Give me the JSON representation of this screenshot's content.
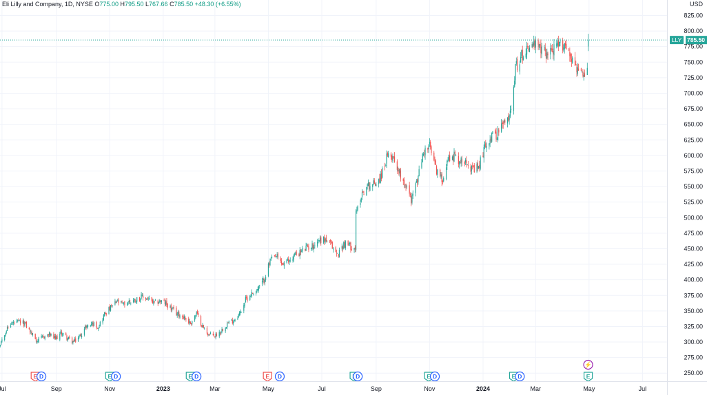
{
  "legend": {
    "name": "Eli Lilly and Company, 1D, NYSE",
    "open_label": "O",
    "open": "775.00",
    "high_label": "H",
    "high": "795.50",
    "low_label": "L",
    "low": "767.66",
    "close_label": "C",
    "close": "785.50",
    "change": "+48.30 (+6.55%)"
  },
  "price_axis": {
    "currency": "USD"
  },
  "last_price": {
    "ticker": "LLY",
    "value": "785.50",
    "color": "#26a69a"
  },
  "colors": {
    "up": "#26a69a",
    "down": "#ef5350",
    "grid": "#f0f3fa",
    "axis_text": "#131722",
    "dividend": "#2962ff"
  },
  "chart_data": {
    "type": "candlestick",
    "title": "Eli Lilly and Company, 1D, NYSE",
    "xlabel": "",
    "ylabel": "",
    "y_ticks": [
      250,
      275,
      300,
      325,
      350,
      375,
      400,
      425,
      450,
      475,
      500,
      525,
      550,
      575,
      600,
      625,
      650,
      675,
      700,
      725,
      750,
      775,
      800,
      825
    ],
    "ylim": [
      237,
      841
    ],
    "x_range": [
      "2022-06-13",
      "2024-07-29"
    ],
    "x_ticks": [
      {
        "date": "2022-07-01",
        "label": "Jul",
        "bold": false
      },
      {
        "date": "2022-09-01",
        "label": "Sep",
        "bold": false
      },
      {
        "date": "2022-11-01",
        "label": "Nov",
        "bold": false
      },
      {
        "date": "2023-01-01",
        "label": "2023",
        "bold": true
      },
      {
        "date": "2023-03-01",
        "label": "Mar",
        "bold": false
      },
      {
        "date": "2023-05-01",
        "label": "May",
        "bold": false
      },
      {
        "date": "2023-07-01",
        "label": "Jul",
        "bold": false
      },
      {
        "date": "2023-09-01",
        "label": "Sep",
        "bold": false
      },
      {
        "date": "2023-11-01",
        "label": "Nov",
        "bold": false
      },
      {
        "date": "2024-01-01",
        "label": "2024",
        "bold": true
      },
      {
        "date": "2024-03-01",
        "label": "Mar",
        "bold": false
      },
      {
        "date": "2024-05-01",
        "label": "May",
        "bold": false
      },
      {
        "date": "2024-07-01",
        "label": "Jul",
        "bold": false
      }
    ],
    "close_path": [
      [
        "2022-06-13",
        305
      ],
      [
        "2022-06-20",
        300
      ],
      [
        "2022-06-27",
        292
      ],
      [
        "2022-07-05",
        318
      ],
      [
        "2022-07-12",
        330
      ],
      [
        "2022-07-20",
        332
      ],
      [
        "2022-07-27",
        330
      ],
      [
        "2022-08-03",
        315
      ],
      [
        "2022-08-10",
        302
      ],
      [
        "2022-08-17",
        308
      ],
      [
        "2022-08-24",
        312
      ],
      [
        "2022-08-31",
        305
      ],
      [
        "2022-09-07",
        315
      ],
      [
        "2022-09-14",
        306
      ],
      [
        "2022-09-21",
        300
      ],
      [
        "2022-09-28",
        310
      ],
      [
        "2022-10-05",
        325
      ],
      [
        "2022-10-12",
        330
      ],
      [
        "2022-10-19",
        325
      ],
      [
        "2022-10-26",
        345
      ],
      [
        "2022-11-02",
        355
      ],
      [
        "2022-11-09",
        365
      ],
      [
        "2022-11-16",
        360
      ],
      [
        "2022-11-23",
        365
      ],
      [
        "2022-11-30",
        368
      ],
      [
        "2022-12-07",
        372
      ],
      [
        "2022-12-14",
        370
      ],
      [
        "2022-12-21",
        362
      ],
      [
        "2022-12-28",
        366
      ],
      [
        "2023-01-04",
        362
      ],
      [
        "2023-01-11",
        352
      ],
      [
        "2023-01-18",
        345
      ],
      [
        "2023-01-25",
        340
      ],
      [
        "2023-02-01",
        330
      ],
      [
        "2023-02-08",
        346
      ],
      [
        "2023-02-15",
        325
      ],
      [
        "2023-02-22",
        312
      ],
      [
        "2023-03-01",
        310
      ],
      [
        "2023-03-08",
        318
      ],
      [
        "2023-03-15",
        330
      ],
      [
        "2023-03-22",
        335
      ],
      [
        "2023-03-29",
        345
      ],
      [
        "2023-04-05",
        368
      ],
      [
        "2023-04-12",
        378
      ],
      [
        "2023-04-19",
        385
      ],
      [
        "2023-04-26",
        400
      ],
      [
        "2023-05-03",
        430
      ],
      [
        "2023-05-10",
        438
      ],
      [
        "2023-05-17",
        425
      ],
      [
        "2023-05-24",
        430
      ],
      [
        "2023-05-31",
        440
      ],
      [
        "2023-06-07",
        445
      ],
      [
        "2023-06-14",
        452
      ],
      [
        "2023-06-21",
        455
      ],
      [
        "2023-06-28",
        465
      ],
      [
        "2023-07-05",
        465
      ],
      [
        "2023-07-12",
        455
      ],
      [
        "2023-07-19",
        440
      ],
      [
        "2023-07-26",
        458
      ],
      [
        "2023-08-02",
        455
      ],
      [
        "2023-08-07",
        452
      ],
      [
        "2023-08-09",
        505
      ],
      [
        "2023-08-16",
        540
      ],
      [
        "2023-08-23",
        552
      ],
      [
        "2023-08-30",
        555
      ],
      [
        "2023-09-06",
        565
      ],
      [
        "2023-09-13",
        595
      ],
      [
        "2023-09-20",
        600
      ],
      [
        "2023-09-27",
        575
      ],
      [
        "2023-10-04",
        555
      ],
      [
        "2023-10-11",
        530
      ],
      [
        "2023-10-18",
        560
      ],
      [
        "2023-10-25",
        605
      ],
      [
        "2023-11-01",
        615
      ],
      [
        "2023-11-08",
        580
      ],
      [
        "2023-11-15",
        560
      ],
      [
        "2023-11-22",
        595
      ],
      [
        "2023-11-29",
        600
      ],
      [
        "2023-12-06",
        590
      ],
      [
        "2023-12-13",
        595
      ],
      [
        "2023-12-20",
        575
      ],
      [
        "2023-12-27",
        580
      ],
      [
        "2024-01-03",
        615
      ],
      [
        "2024-01-10",
        630
      ],
      [
        "2024-01-17",
        635
      ],
      [
        "2024-01-24",
        650
      ],
      [
        "2024-01-31",
        660
      ],
      [
        "2024-02-07",
        740
      ],
      [
        "2024-02-14",
        760
      ],
      [
        "2024-02-21",
        775
      ],
      [
        "2024-02-28",
        778
      ],
      [
        "2024-03-06",
        770
      ],
      [
        "2024-03-13",
        765
      ],
      [
        "2024-03-20",
        770
      ],
      [
        "2024-03-27",
        775
      ],
      [
        "2024-04-03",
        780
      ],
      [
        "2024-04-10",
        760
      ],
      [
        "2024-04-17",
        740
      ],
      [
        "2024-04-24",
        725
      ],
      [
        "2024-04-29",
        735
      ],
      [
        "2024-04-30",
        785.5
      ]
    ]
  },
  "events": [
    {
      "date": "2022-08-08",
      "type": "earnings",
      "label": "E",
      "color": "#ef5350"
    },
    {
      "date": "2022-08-15",
      "type": "dividend",
      "label": "D",
      "color": "#2962ff"
    },
    {
      "date": "2022-11-01",
      "type": "earnings",
      "label": "E",
      "color": "#26a69a"
    },
    {
      "date": "2022-11-08",
      "type": "dividend",
      "label": "D",
      "color": "#2962ff"
    },
    {
      "date": "2023-02-01",
      "type": "earnings",
      "label": "E",
      "color": "#26a69a"
    },
    {
      "date": "2023-02-08",
      "type": "dividend",
      "label": "D",
      "color": "#2962ff"
    },
    {
      "date": "2023-04-30",
      "type": "earnings",
      "label": "E",
      "color": "#ef5350"
    },
    {
      "date": "2023-05-14",
      "type": "dividend",
      "label": "D",
      "color": "#2962ff"
    },
    {
      "date": "2023-08-07",
      "type": "earnings",
      "label": "E",
      "color": "#26a69a"
    },
    {
      "date": "2023-08-11",
      "type": "dividend",
      "label": "D",
      "color": "#2962ff"
    },
    {
      "date": "2023-10-31",
      "type": "earnings",
      "label": "E",
      "color": "#26a69a"
    },
    {
      "date": "2023-11-07",
      "type": "dividend",
      "label": "D",
      "color": "#2962ff"
    },
    {
      "date": "2024-02-05",
      "type": "earnings",
      "label": "E",
      "color": "#26a69a"
    },
    {
      "date": "2024-02-12",
      "type": "dividend",
      "label": "D",
      "color": "#2962ff"
    },
    {
      "date": "2024-04-30",
      "type": "earnings",
      "label": "E",
      "color": "#26a69a"
    },
    {
      "date": "2024-04-30",
      "type": "event",
      "label": "⚡",
      "color": "#9c27b0"
    }
  ]
}
